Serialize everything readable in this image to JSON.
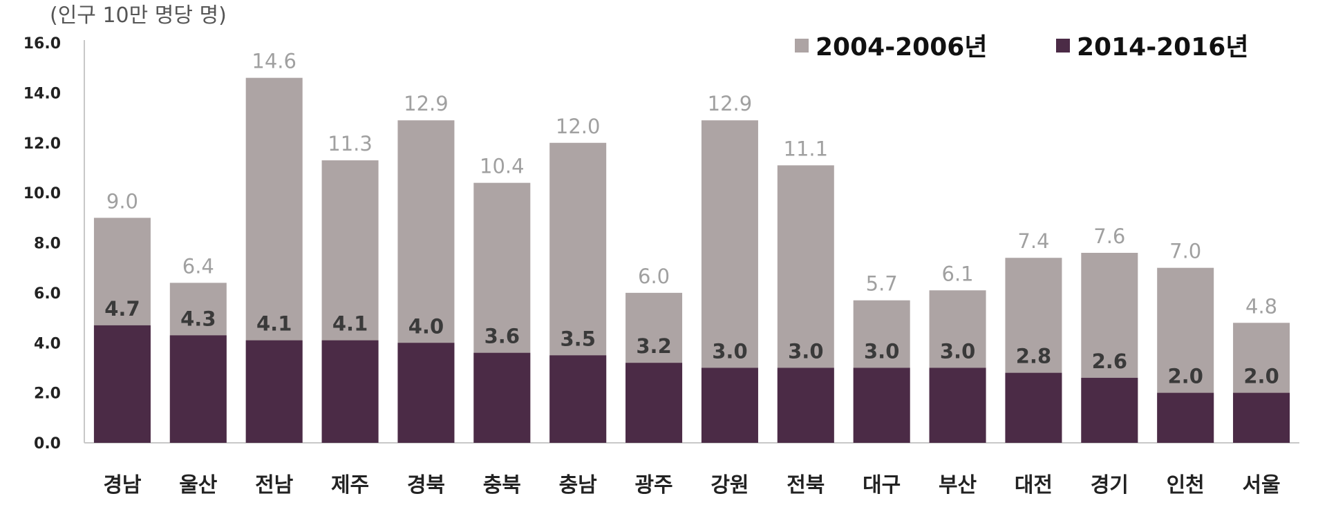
{
  "chart_data": {
    "type": "bar",
    "unit_label": "(인구 10만 명당 명)",
    "categories": [
      "경남",
      "울산",
      "전남",
      "제주",
      "경북",
      "충북",
      "충남",
      "광주",
      "강원",
      "전북",
      "대구",
      "부산",
      "대전",
      "경기",
      "인천",
      "서울"
    ],
    "series": [
      {
        "name": "2004-2006년",
        "color": "#ada4a4",
        "values": [
          9.0,
          6.4,
          14.6,
          11.3,
          12.9,
          10.4,
          12.0,
          6.0,
          12.9,
          11.1,
          5.7,
          6.1,
          7.4,
          7.6,
          7.0,
          4.8
        ]
      },
      {
        "name": "2014-2016년",
        "color": "#4b2b46",
        "values": [
          4.7,
          4.3,
          4.1,
          4.1,
          4.0,
          3.6,
          3.5,
          3.2,
          3.0,
          3.0,
          3.0,
          3.0,
          2.8,
          2.6,
          2.0,
          2.0
        ]
      }
    ],
    "ylim": [
      0,
      16
    ],
    "yticks": [
      "0.0",
      "2.0",
      "4.0",
      "6.0",
      "8.0",
      "10.0",
      "12.0",
      "14.0",
      "16.0"
    ],
    "legend_position": "top-right",
    "grid": false,
    "xlabel": "",
    "ylabel": ""
  }
}
